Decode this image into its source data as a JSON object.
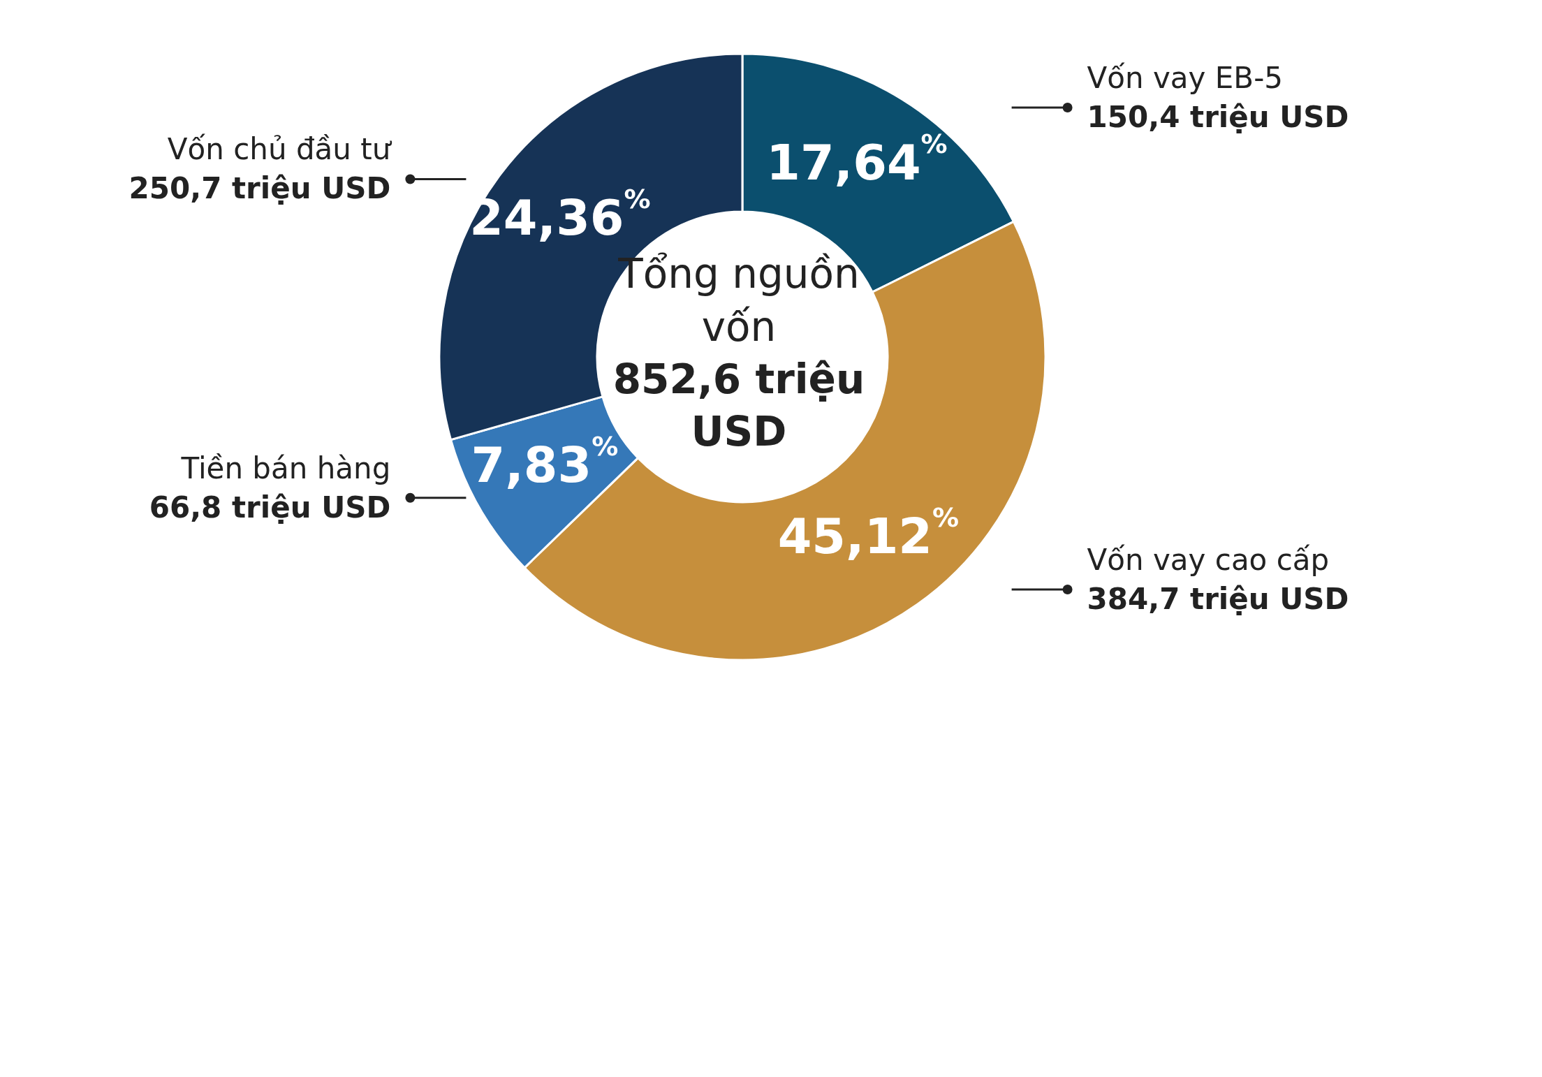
{
  "chart_data": {
    "type": "donut",
    "title": "Tổng nguồn vốn",
    "subtitle": "852,6 triệu USD",
    "categories": [
      "Vốn vay EB-5",
      "Vốn vay cao cấp",
      "Tiền bán hàng",
      "Vốn chủ đầu tư"
    ],
    "values": [
      150.4,
      384.7,
      66.8,
      250.7
    ],
    "colors": [
      "#0b4f6e",
      "#c68f3c",
      "#3578b8",
      "#163356"
    ],
    "value_labels": [
      "150,4 triệu USD",
      "384,7 triệu USD",
      "66,8 triệu USD",
      "250,7 triệu USD"
    ],
    "annotations": [
      "17,64$^{%}$",
      "45,12$^{%}$",
      "7,83$^{%}$",
      "24,36$^{%}$"
    ],
    "legend": false
  }
}
